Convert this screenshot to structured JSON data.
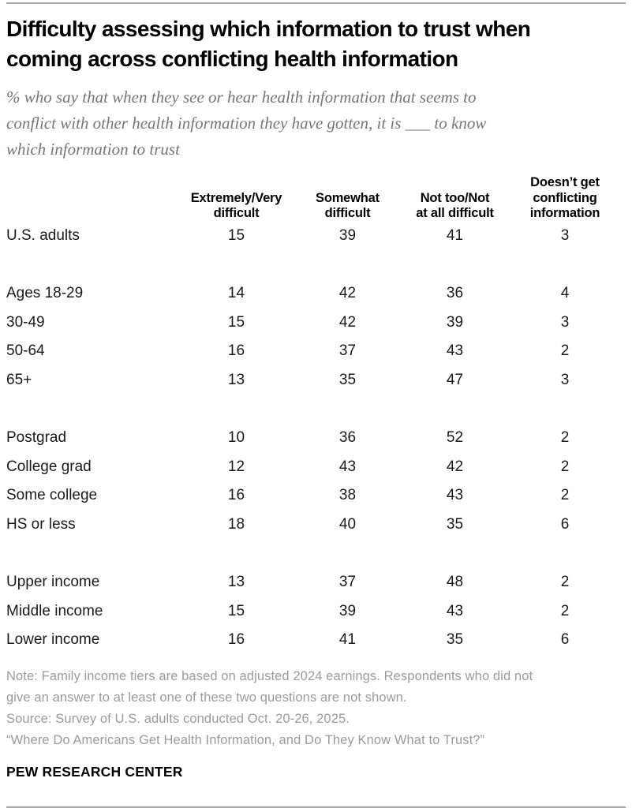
{
  "chart_data": {
    "type": "table",
    "title": "Difficulty assessing which information to trust when\ncoming across conflicting health information",
    "subtitle": "% who say that when they see or hear health information that seems to\nconflict with other health information they have gotten, it is ___ to know\nwhich information to trust",
    "unit": "% of U.S. adults",
    "columns": [
      "Extremely/Very\ndifficult",
      "Somewhat\ndifficult",
      "Not too/Not\nat all difficult",
      "Doesn’t get\nconflicting\ninformation"
    ],
    "groups": [
      {
        "name": "overall",
        "rows": [
          {
            "label": "U.S. adults",
            "values": [
              15,
              39,
              41,
              3
            ]
          }
        ]
      },
      {
        "name": "age",
        "rows": [
          {
            "label": "Ages 18-29",
            "values": [
              14,
              42,
              36,
              4
            ]
          },
          {
            "label": "30-49",
            "values": [
              15,
              42,
              39,
              3
            ]
          },
          {
            "label": "50-64",
            "values": [
              16,
              37,
              43,
              2
            ]
          },
          {
            "label": "65+",
            "values": [
              13,
              35,
              47,
              3
            ]
          }
        ]
      },
      {
        "name": "education",
        "rows": [
          {
            "label": "Postgrad",
            "values": [
              10,
              36,
              52,
              2
            ]
          },
          {
            "label": "College grad",
            "values": [
              12,
              43,
              42,
              2
            ]
          },
          {
            "label": "Some college",
            "values": [
              16,
              38,
              43,
              2
            ]
          },
          {
            "label": "HS or less",
            "values": [
              18,
              40,
              35,
              6
            ]
          }
        ]
      },
      {
        "name": "income",
        "rows": [
          {
            "label": "Upper income",
            "values": [
              13,
              37,
              48,
              2
            ]
          },
          {
            "label": "Middle income",
            "values": [
              15,
              39,
              43,
              2
            ]
          },
          {
            "label": "Lower income",
            "values": [
              16,
              41,
              35,
              6
            ]
          }
        ]
      }
    ]
  },
  "footer": {
    "note": "Note: Family income tiers are based on adjusted 2024 earnings. Respondents who did not\ngive an answer to at least one of these two questions are not shown.",
    "source": "Source: Survey of U.S. adults conducted Oct. 20-26, 2025.",
    "quote": "“Where Do Americans Get Health Information, and Do They Know What to Trust?”",
    "brand": "PEW RESEARCH CENTER"
  },
  "colors": {
    "title_text": "#000000",
    "table_text": "#1a1a1a",
    "subtitle_text": "#717780",
    "note_text": "#9b9b9b",
    "divider": "#a8a8a8",
    "background": "#ffffff"
  }
}
